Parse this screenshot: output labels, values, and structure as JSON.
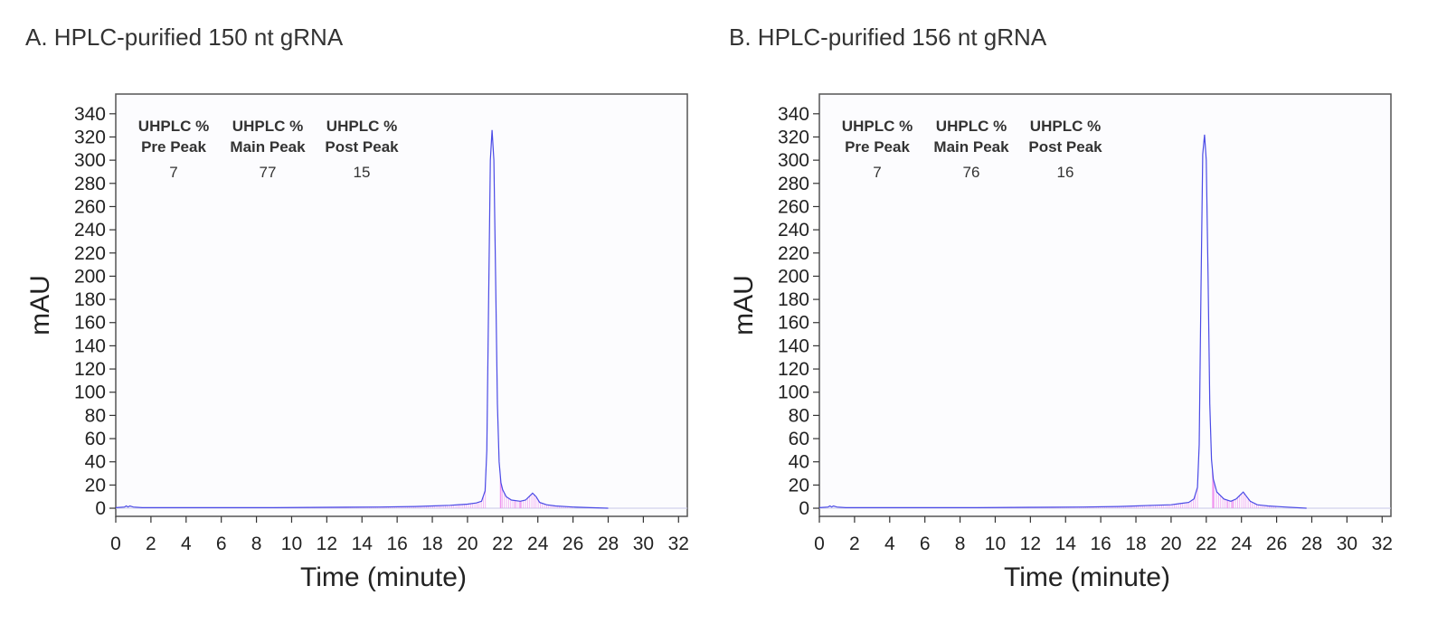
{
  "chart_data": [
    {
      "type": "line",
      "title": "A. HPLC-purified 150 nt gRNA",
      "xlabel": "Time (minute)",
      "ylabel": "mAU",
      "xlim": [
        0,
        32.5
      ],
      "ylim": [
        -7,
        357
      ],
      "xticks": [
        0,
        2,
        4,
        6,
        8,
        10,
        12,
        14,
        16,
        18,
        20,
        22,
        24,
        26,
        28,
        30,
        32
      ],
      "yticks": [
        0,
        20,
        40,
        60,
        80,
        100,
        120,
        140,
        160,
        180,
        200,
        220,
        240,
        260,
        280,
        300,
        320,
        340
      ],
      "grid": false,
      "colors": {
        "trace": "#4a4ae6",
        "marks": "#ee88ee",
        "baseline": "#c8c8e8"
      },
      "annotation": {
        "headers": [
          [
            "UHPLC %",
            "Pre Peak"
          ],
          [
            "UHPLC %",
            "Main Peak"
          ],
          [
            "UHPLC %",
            "Post Peak"
          ]
        ],
        "values": [
          "7",
          "77",
          "15"
        ]
      },
      "series": [
        {
          "x": [
            0.0,
            0.5,
            0.6,
            0.7,
            0.8,
            1.0,
            1.5,
            3,
            6,
            9,
            12,
            15,
            17,
            18,
            19,
            20,
            20.5,
            20.8,
            21.0,
            21.1,
            21.2,
            21.3,
            21.4,
            21.5,
            21.6,
            21.7,
            21.8,
            21.9,
            22.0,
            22.2,
            22.5,
            23.0,
            23.3,
            23.5,
            23.7,
            23.9,
            24.1,
            24.5,
            25.0,
            26.0,
            27.0,
            28.0
          ],
          "y": [
            0.5,
            1.0,
            2.0,
            1.0,
            2.0,
            1.0,
            0.5,
            0.5,
            0.5,
            0.5,
            0.8,
            1.0,
            1.5,
            2.0,
            2.5,
            3.5,
            4.5,
            6,
            15,
            50,
            180,
            300,
            326,
            300,
            200,
            90,
            40,
            22,
            16,
            10,
            7,
            6,
            7,
            10,
            13,
            10,
            5,
            3,
            2,
            1,
            0.5,
            0
          ]
        }
      ]
    },
    {
      "type": "line",
      "title": "B. HPLC-purified 156 nt gRNA",
      "xlabel": "Time (minute)",
      "ylabel": "mAU",
      "xlim": [
        0,
        32.5
      ],
      "ylim": [
        -7,
        357
      ],
      "xticks": [
        0,
        2,
        4,
        6,
        8,
        10,
        12,
        14,
        16,
        18,
        20,
        22,
        24,
        26,
        28,
        30,
        32
      ],
      "yticks": [
        0,
        20,
        40,
        60,
        80,
        100,
        120,
        140,
        160,
        180,
        200,
        220,
        240,
        260,
        280,
        300,
        320,
        340
      ],
      "grid": false,
      "colors": {
        "trace": "#4a4ae6",
        "marks": "#ee88ee",
        "baseline": "#c8c8e8"
      },
      "annotation": {
        "headers": [
          [
            "UHPLC %",
            "Pre Peak"
          ],
          [
            "UHPLC %",
            "Main Peak"
          ],
          [
            "UHPLC %",
            "Post Peak"
          ]
        ],
        "values": [
          "7",
          "76",
          "16"
        ]
      },
      "series": [
        {
          "x": [
            0.0,
            0.5,
            0.6,
            0.7,
            0.8,
            1.0,
            1.5,
            3,
            6,
            9,
            12,
            15,
            17,
            18,
            19,
            20,
            20.5,
            21.0,
            21.3,
            21.5,
            21.6,
            21.7,
            21.8,
            21.9,
            22.0,
            22.1,
            22.2,
            22.3,
            22.4,
            22.6,
            23.0,
            23.4,
            23.7,
            23.9,
            24.1,
            24.3,
            24.5,
            24.9,
            25.5,
            26.5,
            27.7
          ],
          "y": [
            0.5,
            1.0,
            2.0,
            1.0,
            2.0,
            1.0,
            0.5,
            0.5,
            0.5,
            0.5,
            0.8,
            1.0,
            1.5,
            2.0,
            2.5,
            3.0,
            4.0,
            5.0,
            8,
            18,
            55,
            190,
            305,
            322,
            300,
            200,
            90,
            42,
            25,
            14,
            8,
            6,
            8,
            11,
            14,
            10,
            6,
            3,
            2,
            1,
            0
          ]
        }
      ]
    }
  ]
}
